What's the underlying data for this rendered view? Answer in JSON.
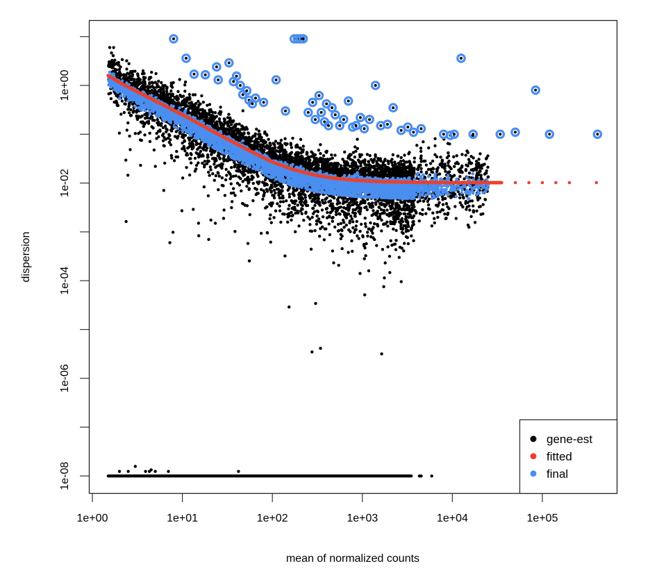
{
  "chart_data": {
    "type": "scatter",
    "title": "",
    "xlabel": "mean of normalized counts",
    "ylabel": "dispersion",
    "xscale": "log",
    "yscale": "log",
    "xlim": [
      0.92,
      600000
    ],
    "ylim": [
      3.5e-09,
      30
    ],
    "grid": false,
    "x_ticks": [
      {
        "value": 1,
        "label": "1e+00"
      },
      {
        "value": 10,
        "label": "1e+01"
      },
      {
        "value": 100,
        "label": "1e+02"
      },
      {
        "value": 1000,
        "label": "1e+03"
      },
      {
        "value": 10000,
        "label": "1e+04"
      },
      {
        "value": 100000,
        "label": "1e+05"
      }
    ],
    "y_ticks": [
      {
        "value": 10,
        "label": ""
      },
      {
        "value": 1,
        "label": "1e+00"
      },
      {
        "value": 0.1,
        "label": ""
      },
      {
        "value": 0.01,
        "label": "1e-02"
      },
      {
        "value": 0.001,
        "label": ""
      },
      {
        "value": 0.0001,
        "label": "1e-04"
      },
      {
        "value": 1e-05,
        "label": ""
      },
      {
        "value": 1e-06,
        "label": "1e-06"
      },
      {
        "value": 1e-07,
        "label": ""
      },
      {
        "value": 1e-08,
        "label": "1e-08"
      }
    ],
    "legend": {
      "position": "bottom-right",
      "entries": [
        {
          "label": "gene-est",
          "color": "#000000"
        },
        {
          "label": "fitted",
          "color": "#e8412e"
        },
        {
          "label": "final",
          "color": "#4a8eef"
        }
      ]
    },
    "series": [
      {
        "name": "fitted",
        "color": "#e8412e",
        "x": [
          1.5,
          2,
          3,
          5,
          8,
          12,
          20,
          35,
          60,
          100,
          170,
          300,
          500,
          800,
          1300,
          2000,
          3500,
          6000,
          10000,
          20000,
          50000,
          100000,
          200000,
          400000
        ],
        "y": [
          1.6,
          1.15,
          0.78,
          0.48,
          0.31,
          0.21,
          0.125,
          0.072,
          0.043,
          0.027,
          0.019,
          0.0145,
          0.0125,
          0.0115,
          0.0109,
          0.0106,
          0.0104,
          0.0103,
          0.0102,
          0.0102,
          0.0102,
          0.0102,
          0.0102,
          0.0102
        ]
      },
      {
        "name": "final-outliers",
        "color": "#4a8eef",
        "x": [
          8,
          11,
          13.5,
          18,
          24,
          25,
          33,
          37,
          40,
          44,
          47,
          52,
          55,
          60,
          65,
          80,
          110,
          140,
          175,
          190,
          205,
          220,
          250,
          280,
          300,
          330,
          350,
          380,
          400,
          420,
          460,
          500,
          560,
          620,
          700,
          780,
          850,
          950,
          1050,
          1200,
          1400,
          1600,
          1900,
          2200,
          2700,
          3200,
          3700,
          4500,
          8000,
          9500,
          10500,
          12500,
          17000,
          34000,
          50000,
          84000,
          120000,
          410000
        ],
        "y": [
          9.0,
          3.6,
          1.7,
          1.65,
          2.4,
          1.3,
          2.9,
          1.2,
          1.55,
          1.0,
          0.65,
          0.78,
          0.5,
          0.42,
          0.55,
          0.45,
          1.3,
          0.3,
          9.0,
          9.0,
          9.0,
          9.0,
          0.28,
          0.45,
          0.2,
          0.62,
          0.28,
          0.18,
          0.42,
          0.15,
          0.35,
          0.25,
          0.15,
          0.2,
          0.48,
          0.14,
          0.15,
          0.22,
          0.13,
          0.2,
          1.0,
          0.15,
          0.16,
          0.35,
          0.12,
          0.14,
          0.11,
          0.13,
          0.1,
          0.095,
          0.1,
          3.6,
          0.1,
          0.1,
          0.11,
          0.8,
          0.1,
          0.1
        ]
      },
      {
        "name": "gene-est-floor",
        "color": "#000000",
        "note_value": 1e-08,
        "x_range": [
          1.5,
          6000
        ]
      }
    ]
  }
}
